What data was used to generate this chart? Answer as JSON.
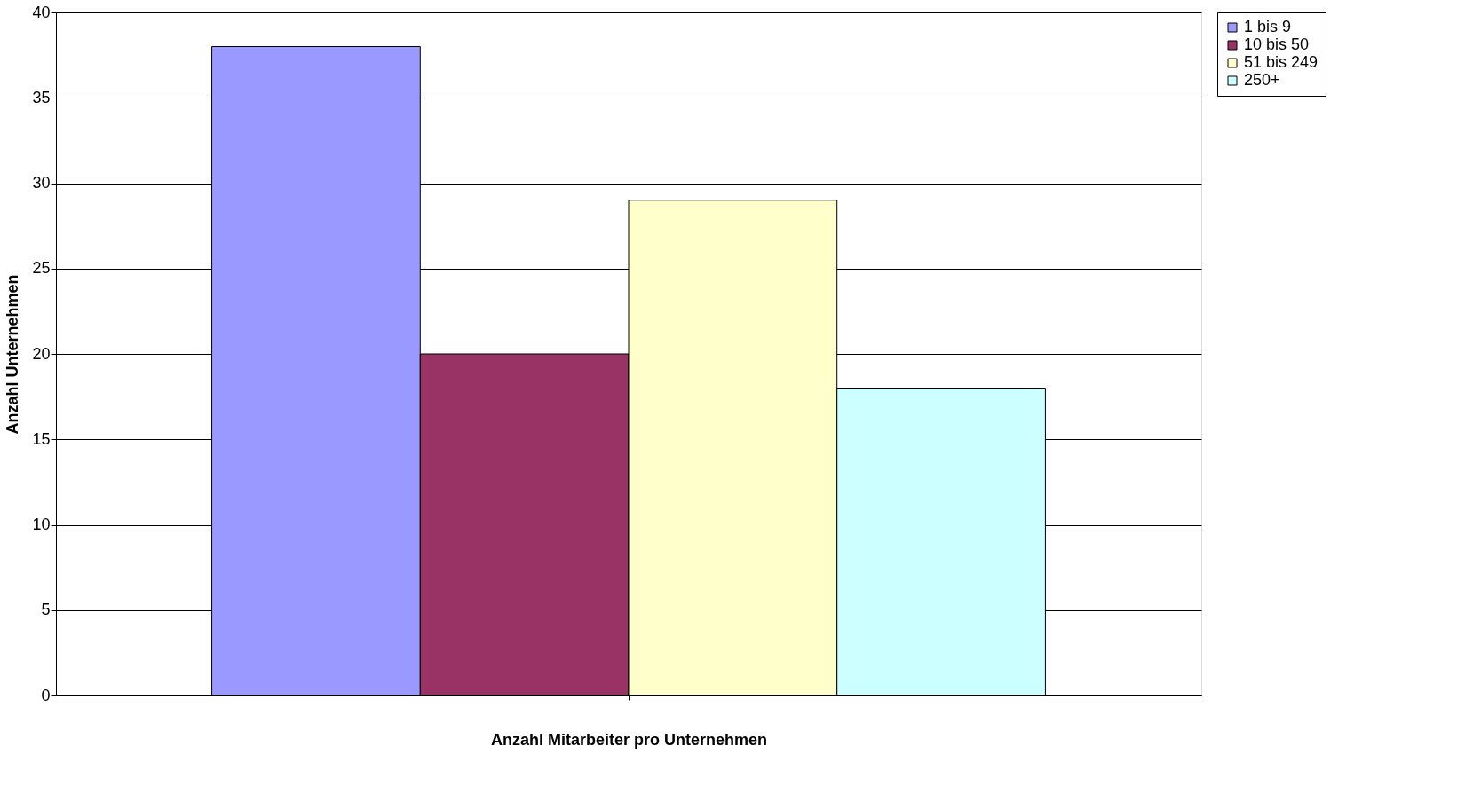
{
  "chart_data": {
    "type": "bar",
    "xlabel": "Anzahl Mitarbeiter pro Unternehmen",
    "ylabel": "Anzahl Unternehmen",
    "categories": [
      null
    ],
    "series": [
      {
        "name": "1 bis 9",
        "color": "#9999ff",
        "values": [
          38
        ]
      },
      {
        "name": "10 bis 50",
        "color": "#993366",
        "values": [
          20
        ]
      },
      {
        "name": "51 bis 249",
        "color": "#ffffcc",
        "values": [
          29
        ]
      },
      {
        "name": "250+",
        "color": "#ccffff",
        "values": [
          18
        ]
      }
    ],
    "ylim": [
      0,
      40
    ],
    "yticks": [
      0,
      5,
      10,
      15,
      20,
      25,
      30,
      35,
      40
    ],
    "grid": "y",
    "legend": "right"
  }
}
